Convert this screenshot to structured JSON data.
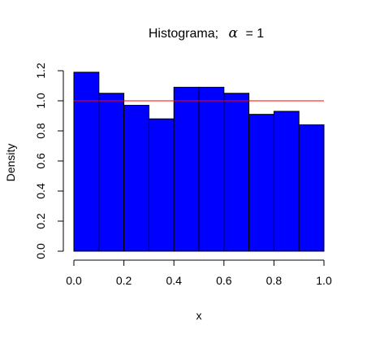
{
  "chart_data": {
    "type": "bar",
    "title_prefix": "Histograma;",
    "title_symbol": "α",
    "title_suffix": "= 1",
    "xlabel": "x",
    "ylabel": "Density",
    "bin_edges": [
      0.0,
      0.1,
      0.2,
      0.3,
      0.4,
      0.5,
      0.6,
      0.7,
      0.8,
      0.9,
      1.0
    ],
    "values": [
      1.19,
      1.05,
      0.97,
      0.88,
      1.09,
      1.09,
      1.05,
      0.91,
      0.93,
      0.84
    ],
    "xlim": [
      0.0,
      1.0
    ],
    "ylim": [
      0.0,
      1.2
    ],
    "x_ticks": [
      "0.0",
      "0.2",
      "0.4",
      "0.6",
      "0.8",
      "1.0"
    ],
    "y_ticks": [
      "0.0",
      "0.2",
      "0.4",
      "0.6",
      "0.8",
      "1.0",
      "1.2"
    ],
    "reference_line": {
      "y": 1.0,
      "color": "#ff0000"
    },
    "bar_color": "#0000ff",
    "grid": false
  }
}
